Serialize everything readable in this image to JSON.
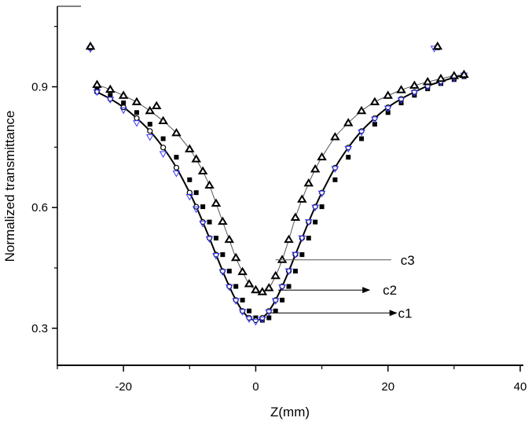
{
  "chart_data": {
    "type": "scatter",
    "title": "",
    "xlabel": "Z(mm)",
    "ylabel": "Normalized transmittance",
    "xlim": [
      -30,
      40
    ],
    "ylim": [
      0.208,
      1.1
    ],
    "xticks": [
      -20,
      0,
      20,
      40
    ],
    "xminor": [
      -30,
      -10,
      10,
      30
    ],
    "yticks": [
      0.3,
      0.6,
      0.9
    ],
    "yminor": [
      0.45,
      0.75,
      1.05
    ],
    "ytick_labels": [
      "0.3",
      "0.6",
      "0.9"
    ],
    "xtick_labels": [
      "-20",
      "0",
      "20",
      "40"
    ],
    "grid": false,
    "legend": "none",
    "x": [
      -24,
      -22,
      -20,
      -18,
      -16,
      -14,
      -12,
      -10,
      -9,
      -8,
      -7,
      -6,
      -5,
      -4,
      -3,
      -2,
      -1,
      0,
      1,
      2,
      3,
      4,
      5,
      6,
      7,
      8,
      9,
      10,
      12,
      14,
      16,
      18,
      20,
      22,
      24,
      26,
      28,
      30,
      31.5
    ],
    "series": [
      {
        "marker": "square-filled",
        "color": "#000000",
        "values": [
          0.895,
          0.879,
          0.86,
          0.836,
          0.807,
          0.771,
          0.725,
          0.669,
          0.637,
          0.602,
          0.564,
          0.524,
          0.483,
          0.442,
          0.404,
          0.37,
          0.343,
          0.326,
          0.32,
          0.326,
          0.343,
          0.37,
          0.404,
          0.442,
          0.483,
          0.524,
          0.564,
          0.602,
          0.669,
          0.725,
          0.771,
          0.807,
          0.836,
          0.86,
          0.879,
          0.895,
          0.908,
          0.918,
          0.925
        ],
        "extra_points": [
          [
            -25,
            0.997
          ],
          [
            27.5,
            0.997
          ]
        ]
      },
      {
        "marker": "circle-open",
        "color": "#000000",
        "values": [
          0.887,
          0.87,
          0.849,
          0.822,
          0.79,
          0.749,
          0.699,
          0.637,
          0.602,
          0.564,
          0.524,
          0.483,
          0.442,
          0.404,
          0.37,
          0.343,
          0.326,
          0.32,
          0.326,
          0.343,
          0.37,
          0.404,
          0.442,
          0.483,
          0.524,
          0.564,
          0.602,
          0.637,
          0.699,
          0.749,
          0.79,
          0.822,
          0.849,
          0.87,
          0.887,
          0.902,
          0.913,
          0.923,
          0.93
        ],
        "extra_points": [
          [
            -25,
            0.997
          ]
        ]
      },
      {
        "marker": "triangle-down-open",
        "color": "#3a3aff",
        "values": [
          0.887,
          0.868,
          0.842,
          0.81,
          0.775,
          0.733,
          0.685,
          0.627,
          0.596,
          0.56,
          0.522,
          0.48,
          0.44,
          0.402,
          0.368,
          0.341,
          0.323,
          0.316,
          0.322,
          0.34,
          0.368,
          0.402,
          0.442,
          0.483,
          0.524,
          0.564,
          0.6,
          0.635,
          0.696,
          0.746,
          0.787,
          0.819,
          0.846,
          0.867,
          0.885,
          0.9,
          0.911,
          0.921,
          0.928
        ],
        "extra_points": [
          [
            -25,
            0.994
          ],
          [
            27,
            0.995
          ]
        ]
      },
      {
        "marker": "triangle-up",
        "color": "#000000",
        "values": [
          0.905,
          0.893,
          0.878,
          0.862,
          0.84,
          0.815,
          0.785,
          0.745,
          0.72,
          0.69,
          0.655,
          0.61,
          0.565,
          0.52,
          0.475,
          0.44,
          0.41,
          0.395,
          0.39,
          0.4,
          0.43,
          0.47,
          0.52,
          0.575,
          0.62,
          0.66,
          0.695,
          0.725,
          0.775,
          0.81,
          0.84,
          0.862,
          0.878,
          0.892,
          0.903,
          0.912,
          0.92,
          0.927,
          0.93
        ],
        "extra_points": [
          [
            -15,
            0.852
          ],
          [
            -25,
            1.0
          ],
          [
            27.5,
            1.0
          ]
        ]
      }
    ],
    "fit_lines": [
      {
        "follows_series": 1,
        "color": "#000000",
        "style": "thick"
      },
      {
        "follows_series": 3,
        "color": "#555555",
        "style": "thin"
      }
    ],
    "annotations": [
      {
        "text": "c3",
        "from": [
          3,
          0.47
        ],
        "to": [
          20.5,
          0.47
        ],
        "label_at": [
          21.2,
          0.47
        ],
        "arrow": false
      },
      {
        "text": "c2",
        "from": [
          3.4,
          0.395
        ],
        "to": [
          17.2,
          0.395
        ],
        "label_at": [
          18.5,
          0.395
        ],
        "arrow": true
      },
      {
        "text": "c1",
        "from": [
          2.2,
          0.338
        ],
        "to": [
          21.3,
          0.338
        ],
        "label_at": [
          20.8,
          0.338
        ],
        "arrow": true
      }
    ]
  }
}
